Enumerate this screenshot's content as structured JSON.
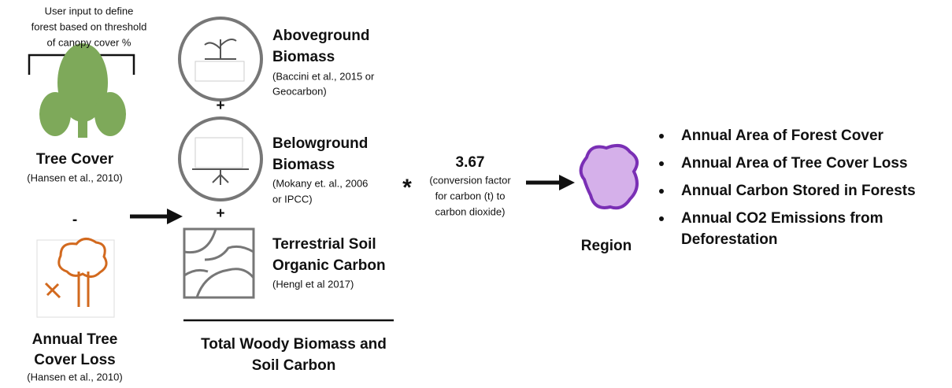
{
  "user_input": [
    "User input to define",
    "forest based on threshold",
    "of canopy cover %"
  ],
  "tree_cover": {
    "title": "Tree Cover",
    "source": "(Hansen et al., 2010)"
  },
  "minus": "-",
  "tree_loss": {
    "title": [
      "Annual Tree",
      "Cover Loss"
    ],
    "source": "(Hansen et al., 2010)"
  },
  "aboveground": {
    "title": [
      "Aboveground",
      "Biomass"
    ],
    "source": [
      "(Baccini et al., 2015 or",
      "Geocarbon)"
    ]
  },
  "plus": [
    "+",
    "+"
  ],
  "belowground": {
    "title": [
      "Belowground",
      "Biomass"
    ],
    "source": [
      "(Mokany et. al., 2006",
      "or IPCC)"
    ]
  },
  "soil": {
    "title": [
      "Terrestrial Soil",
      "Organic Carbon"
    ],
    "source": "(Hengl et al 2017)"
  },
  "total": [
    "Total Woody Biomass and",
    "Soil Carbon"
  ],
  "multiply": "*",
  "factor": {
    "value": "3.67",
    "note": [
      "(conversion factor",
      "for carbon (t) to",
      "carbon dioxide)"
    ]
  },
  "region": "Region",
  "outputs": [
    [
      "Annual Area of Forest Cover"
    ],
    [
      "Annual Area of Tree Cover Loss"
    ],
    [
      "Annual Carbon Stored in Forests"
    ],
    [
      "Annual CO2 Emissions from",
      "Deforestation"
    ]
  ]
}
